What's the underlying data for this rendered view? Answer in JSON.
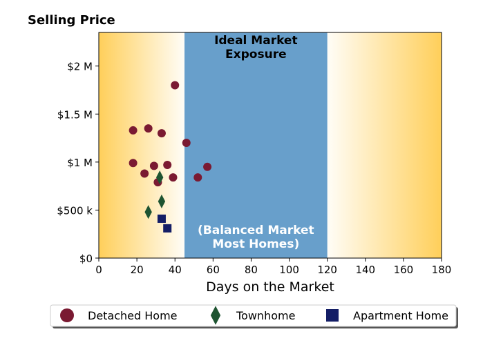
{
  "chart_data": {
    "type": "scatter",
    "title": "Selling Price",
    "xlabel": "Days on the Market",
    "ylabel": "",
    "xlim": [
      0,
      180
    ],
    "ylim": [
      0,
      2350000
    ],
    "x_ticks": [
      0,
      20,
      40,
      60,
      80,
      100,
      120,
      140,
      160,
      180
    ],
    "x_tick_labels": [
      "0",
      "20",
      "40",
      "60",
      "80",
      "100",
      "120",
      "140",
      "160",
      "180"
    ],
    "y_ticks": [
      0,
      500000,
      1000000,
      1500000,
      2000000
    ],
    "y_tick_labels": [
      "$0",
      "$500 k",
      "$1 M",
      "$1.5 M",
      "$2 M"
    ],
    "grid": false,
    "background": {
      "edge_color": "#ffcf5a",
      "center_color": "#fffdf7"
    },
    "bands": [
      {
        "x_range": [
          45,
          120
        ],
        "color": "#689fcb",
        "top_label_lines": [
          "Ideal Market",
          "Exposure"
        ],
        "top_label_color": "#000000",
        "bottom_label_lines": [
          "(Balanced Market",
          "Most Homes)"
        ],
        "bottom_label_color": "#ffffff"
      }
    ],
    "legend_position": "bottom",
    "series": [
      {
        "name": "Detached Home",
        "marker": "circle",
        "color": "#7a1a32",
        "points": [
          [
            40,
            1800000
          ],
          [
            18,
            1330000
          ],
          [
            26,
            1350000
          ],
          [
            33,
            1300000
          ],
          [
            46,
            1200000
          ],
          [
            18,
            990000
          ],
          [
            24,
            880000
          ],
          [
            29,
            960000
          ],
          [
            36,
            970000
          ],
          [
            31,
            790000
          ],
          [
            39,
            840000
          ],
          [
            52,
            840000
          ],
          [
            57,
            950000
          ]
        ]
      },
      {
        "name": "Townhome",
        "marker": "diamond",
        "color": "#1e5431",
        "points": [
          [
            32,
            840000
          ],
          [
            26,
            480000
          ],
          [
            33,
            590000
          ]
        ]
      },
      {
        "name": "Apartment Home",
        "marker": "square",
        "color": "#141e66",
        "points": [
          [
            33,
            410000
          ],
          [
            36,
            310000
          ]
        ]
      }
    ]
  }
}
